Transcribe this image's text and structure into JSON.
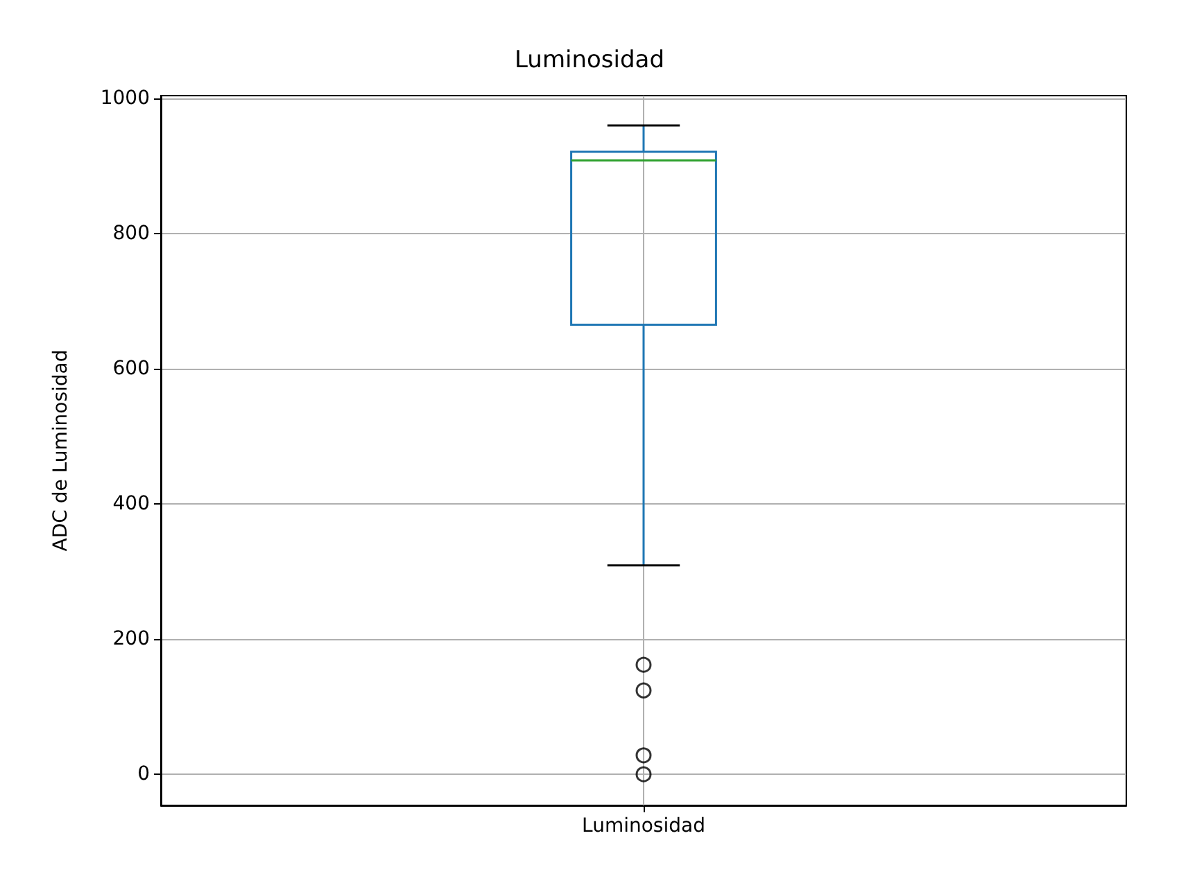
{
  "chart_data": {
    "type": "box",
    "title": "Luminosidad",
    "ylabel": "ADC de Luminosidad",
    "categories": [
      "Luminosidad"
    ],
    "boxes": [
      {
        "low": 309,
        "q1": 665,
        "median": 908,
        "q3": 921,
        "high": 960,
        "outliers": [
          162,
          124,
          28,
          0
        ]
      }
    ],
    "color": "#1f77b4",
    "ylim": [
      -46,
      1004
    ],
    "yticks": [
      0,
      200,
      400,
      600,
      800,
      1000
    ],
    "grid": true
  }
}
